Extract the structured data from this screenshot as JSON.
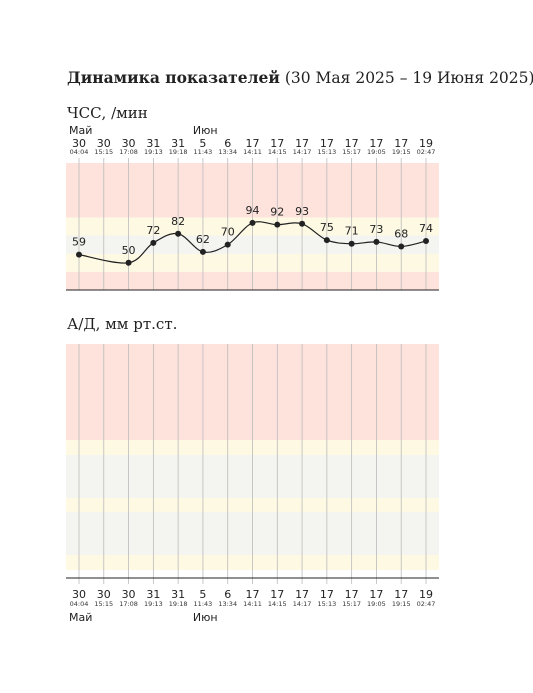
{
  "title": "Динамика показателей",
  "subtitle": "(30 Мая 2025 – 19 Июня 2025)",
  "chart_data": [
    {
      "type": "line",
      "title": "ЧСС, /мин",
      "days": [
        "30",
        "30",
        "30",
        "31",
        "31",
        "5",
        "6",
        "17",
        "17",
        "17",
        "17",
        "17",
        "17",
        "17",
        "19"
      ],
      "times": [
        "04:04",
        "15:15",
        "17:08",
        "19:13",
        "19:18",
        "11:43",
        "13:34",
        "14:11",
        "14:15",
        "14:17",
        "15:13",
        "15:17",
        "19:05",
        "19:15",
        "02:47"
      ],
      "months": [
        "Май",
        null,
        null,
        null,
        null,
        "Июн",
        null,
        null,
        null,
        null,
        null,
        null,
        null,
        null,
        null
      ],
      "series": [
        {
          "color": "#222222",
          "values": [
            59,
            null,
            50,
            72,
            82,
            62,
            70,
            94,
            92,
            93,
            75,
            71,
            73,
            68,
            74
          ]
        }
      ],
      "ylim": [
        20,
        160
      ],
      "bands": [
        {
          "range": [
            20,
            40
          ],
          "color": "#fde3dc"
        },
        {
          "range": [
            40,
            60
          ],
          "color": "#fdf9e3"
        },
        {
          "range": [
            60,
            80
          ],
          "color": "#f4f4f0"
        },
        {
          "range": [
            80,
            100
          ],
          "color": "#fdf9e3"
        },
        {
          "range": [
            100,
            160
          ],
          "color": "#fde3dc"
        }
      ]
    },
    {
      "type": "line",
      "title": "А/Д, мм рт.ст.",
      "series": []
    }
  ]
}
